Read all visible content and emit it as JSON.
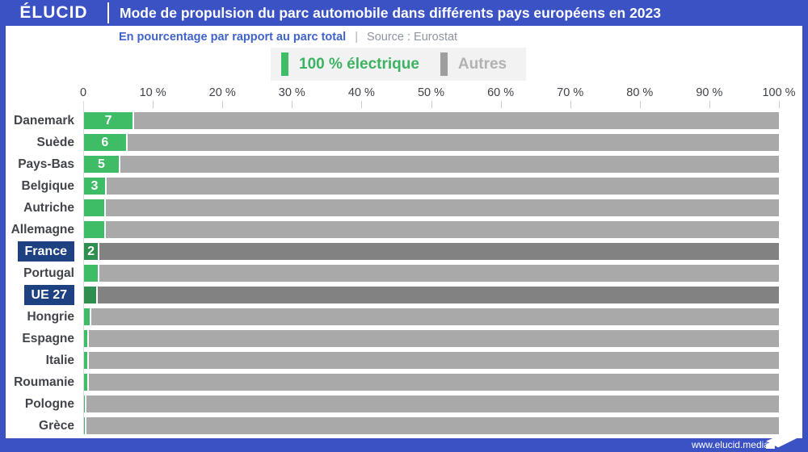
{
  "colors": {
    "frame_blue": "#3a52c4",
    "highlight_navy": "#1e4181",
    "electric_green": "#3fbc66",
    "electric_green_dark": "#2f8f50",
    "autres_gray": "#a9a9a9",
    "autres_gray_dark": "#828282",
    "legend_green_text": "#3cb263",
    "legend_gray_text": "#b2b2b2",
    "legend_gray_swatch": "#9e9e9e"
  },
  "header": {
    "logo": "ÉLUCID",
    "title": "Mode de propulsion du parc automobile dans différents pays européens en 2023"
  },
  "subtitle": {
    "text": "En pourcentage par rapport au parc total",
    "separator": "|",
    "source": "Source : Eurostat"
  },
  "legend": {
    "electric_label": "100 % électrique",
    "autres_label": "Autres"
  },
  "axis": {
    "tick_labels": [
      "0",
      "10 %",
      "20 %",
      "30 %",
      "40 %",
      "50 %",
      "60 %",
      "70 %",
      "80 %",
      "90 %",
      "100 %"
    ]
  },
  "chart_data": {
    "type": "bar",
    "orientation": "horizontal",
    "stacked": true,
    "title": "Mode de propulsion du parc automobile dans différents pays européens en 2023",
    "xlabel": "En pourcentage par rapport au parc total",
    "xlim": [
      0,
      100
    ],
    "legend_position": "top",
    "series_names": [
      "100 % électrique",
      "Autres"
    ],
    "rows": [
      {
        "country": "Danemark",
        "electric_pct": 7,
        "autres_pct": 93,
        "bar_label": "7",
        "highlighted": false
      },
      {
        "country": "Suède",
        "electric_pct": 6,
        "autres_pct": 94,
        "bar_label": "6",
        "highlighted": false
      },
      {
        "country": "Pays-Bas",
        "electric_pct": 5,
        "autres_pct": 95,
        "bar_label": "5",
        "highlighted": false
      },
      {
        "country": "Belgique",
        "electric_pct": 3,
        "autres_pct": 97,
        "bar_label": "3",
        "highlighted": false
      },
      {
        "country": "Autriche",
        "electric_pct": 2.9,
        "autres_pct": 97.1,
        "bar_label": "",
        "highlighted": false
      },
      {
        "country": "Allemagne",
        "electric_pct": 2.85,
        "autres_pct": 97.15,
        "bar_label": "",
        "highlighted": false
      },
      {
        "country": "France",
        "electric_pct": 2,
        "autres_pct": 98,
        "bar_label": "2",
        "highlighted": true
      },
      {
        "country": "Portugal",
        "electric_pct": 1.95,
        "autres_pct": 98.05,
        "bar_label": "",
        "highlighted": false
      },
      {
        "country": "UE 27",
        "electric_pct": 1.8,
        "autres_pct": 98.2,
        "bar_label": "",
        "highlighted": true
      },
      {
        "country": "Hongrie",
        "electric_pct": 0.8,
        "autres_pct": 99.2,
        "bar_label": "",
        "highlighted": false
      },
      {
        "country": "Espagne",
        "electric_pct": 0.5,
        "autres_pct": 99.5,
        "bar_label": "",
        "highlighted": false
      },
      {
        "country": "Italie",
        "electric_pct": 0.5,
        "autres_pct": 99.5,
        "bar_label": "",
        "highlighted": false
      },
      {
        "country": "Roumanie",
        "electric_pct": 0.45,
        "autres_pct": 99.55,
        "bar_label": "",
        "highlighted": false
      },
      {
        "country": "Pologne",
        "electric_pct": 0.1,
        "autres_pct": 99.9,
        "bar_label": "",
        "highlighted": false
      },
      {
        "country": "Grèce",
        "electric_pct": 0.1,
        "autres_pct": 99.9,
        "bar_label": "",
        "highlighted": false
      }
    ]
  },
  "footer": {
    "url": "www.elucid.media"
  }
}
